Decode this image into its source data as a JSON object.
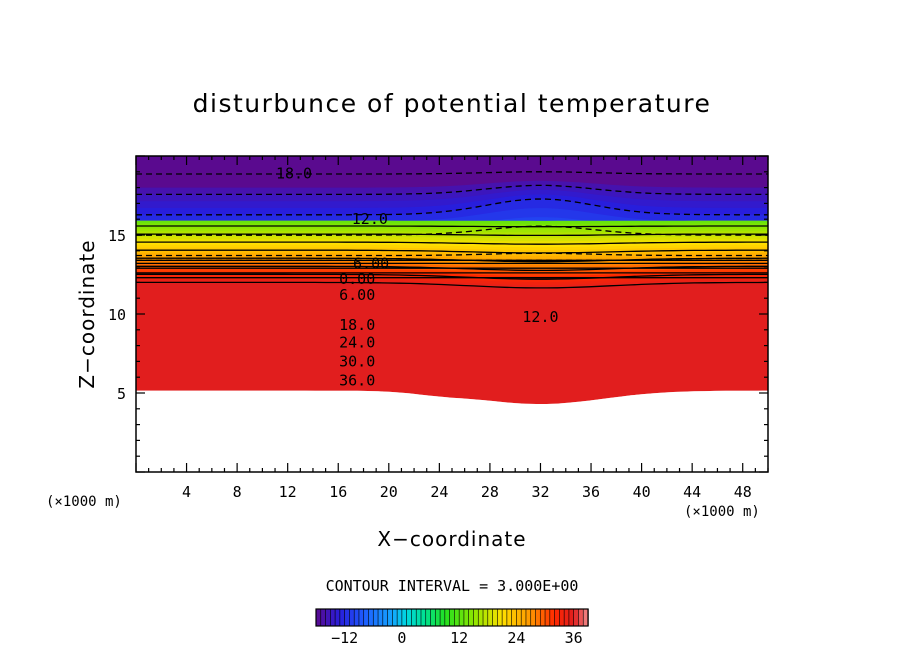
{
  "chart_data": {
    "type": "contour",
    "title": "disturbunce of potential temperature",
    "xlabel": "X−coordinate",
    "ylabel": "Z−coordinate",
    "x_unit": "(×1000 m)",
    "y_unit": "(×1000 m)",
    "xlim": [
      0,
      50
    ],
    "ylim": [
      0,
      20
    ],
    "x_ticks": [
      4,
      8,
      12,
      16,
      20,
      24,
      28,
      32,
      36,
      40,
      44,
      48
    ],
    "y_ticks": [
      5,
      10,
      15
    ],
    "contour_interval_text": "CONTOUR INTERVAL = 3.000E+00",
    "contour_interval": 3.0,
    "contour_labels": [
      {
        "text": "18.0",
        "x": 12.5,
        "z": 18.9
      },
      {
        "text": "12.0",
        "x": 18.5,
        "z": 16.0
      },
      {
        "text": "6.00",
        "x": 18.6,
        "z": 13.2
      },
      {
        "text": "0.00",
        "x": 17.5,
        "z": 12.2
      },
      {
        "text": "6.00",
        "x": 17.5,
        "z": 11.2
      },
      {
        "text": "12.0",
        "x": 32.0,
        "z": 9.8
      },
      {
        "text": "18.0",
        "x": 17.5,
        "z": 9.3
      },
      {
        "text": "24.0",
        "x": 17.5,
        "z": 8.2
      },
      {
        "text": "30.0",
        "x": 17.5,
        "z": 7.0
      },
      {
        "text": "36.0",
        "x": 17.5,
        "z": 5.8
      }
    ],
    "field_range": [
      -18,
      39
    ],
    "colorbar_range": [
      -18,
      39
    ],
    "colorbar_ticks": [
      -12,
      0,
      12,
      24,
      36
    ],
    "colorbar_tick_labels": [
      "−12",
      "0",
      "12",
      "24",
      "36"
    ],
    "colors": {
      "low": "#5a0a8f",
      "mid_low": "#1e5cff",
      "zero": "#00d8e0",
      "mid": "#22e020",
      "mid_high": "#ffe000",
      "high": "#ff1e00",
      "top": "#f08a8a"
    }
  }
}
